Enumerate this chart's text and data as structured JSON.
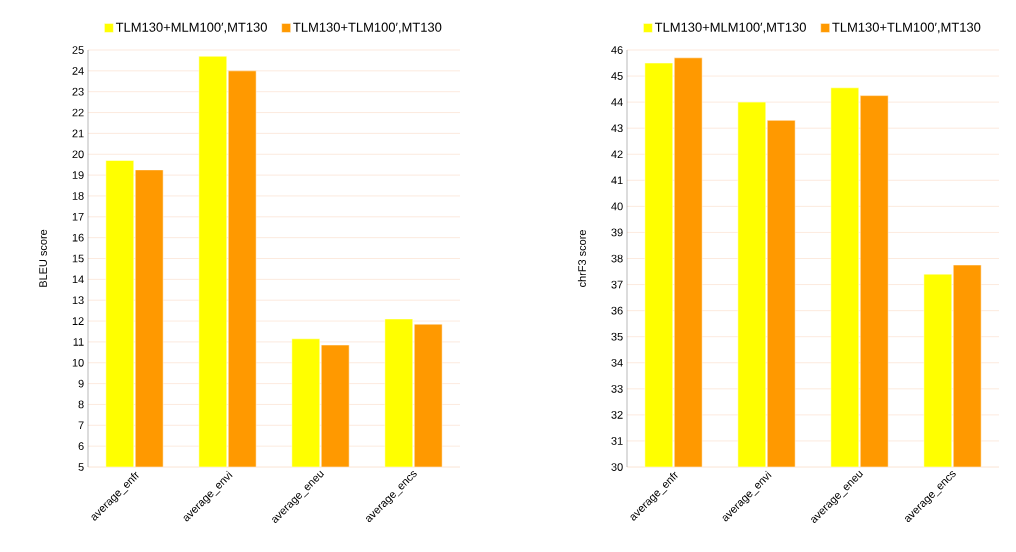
{
  "chart_data": [
    {
      "type": "bar",
      "ylabel": "BLEU score",
      "categories": [
        "average_enfr",
        "average_envi",
        "average_eneu",
        "average_encs"
      ],
      "series": [
        {
          "name": "TLM130+MLM100′,MT130",
          "color": "#ffff00",
          "values": [
            19.7,
            24.7,
            11.15,
            12.1
          ]
        },
        {
          "name": "TLM130+TLM100′,MT130",
          "color": "#ff9900",
          "values": [
            19.25,
            24.0,
            10.85,
            11.85
          ]
        }
      ],
      "ylim": [
        5,
        25
      ],
      "yticks": [
        5,
        6,
        7,
        8,
        9,
        10,
        11,
        12,
        13,
        14,
        15,
        16,
        17,
        18,
        19,
        20,
        21,
        22,
        23,
        24,
        25
      ],
      "grid": "y",
      "legend": "top"
    },
    {
      "type": "bar",
      "ylabel": "chrF3 score",
      "categories": [
        "average_enfr",
        "average_envi",
        "average_eneu",
        "average_encs"
      ],
      "series": [
        {
          "name": "TLM130+MLM100′,MT130",
          "color": "#ffff00",
          "values": [
            45.5,
            44.0,
            44.55,
            37.4
          ]
        },
        {
          "name": "TLM130+TLM100′,MT130",
          "color": "#ff9900",
          "values": [
            45.7,
            43.3,
            44.25,
            37.75
          ]
        }
      ],
      "ylim": [
        30,
        46
      ],
      "yticks": [
        30,
        31,
        32,
        33,
        34,
        35,
        36,
        37,
        38,
        39,
        40,
        41,
        42,
        43,
        44,
        45,
        46
      ],
      "grid": "y",
      "legend": "top"
    }
  ]
}
